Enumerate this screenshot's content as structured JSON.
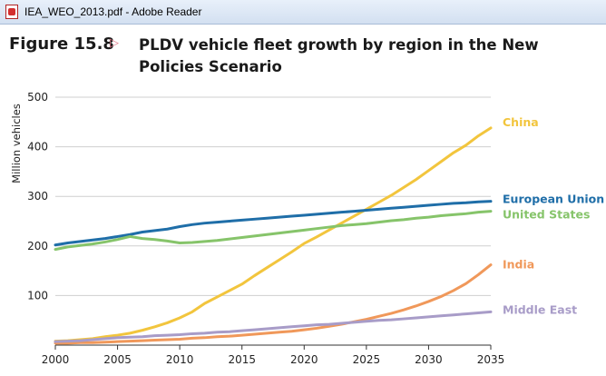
{
  "window": {
    "title": "IEA_WEO_2013.pdf - Adobe Reader"
  },
  "figure": {
    "number": "Figure 15.8",
    "marker": "▷",
    "title": "PLDV vehicle fleet growth by region in the New Policies Scenario"
  },
  "chart_data": {
    "type": "line",
    "title": "",
    "ylabel": "Million vehicles",
    "xlabel": "",
    "xlim": [
      2000,
      2035
    ],
    "ylim": [
      0,
      500
    ],
    "x_ticks": [
      2000,
      2005,
      2010,
      2015,
      2020,
      2025,
      2030,
      2035
    ],
    "y_ticks": [
      100,
      200,
      300,
      400,
      500
    ],
    "y_tick_labels": [
      "100",
      "200",
      "300",
      "400",
      "500"
    ],
    "x_tick_labels": [
      "2000",
      "2005",
      "2010",
      "2015",
      "2020",
      "2025",
      "2030",
      "2035"
    ],
    "grid": "horizontal",
    "legend": "inline at line ends",
    "x": [
      2000,
      2001,
      2002,
      2003,
      2004,
      2005,
      2006,
      2007,
      2008,
      2009,
      2010,
      2011,
      2012,
      2013,
      2014,
      2015,
      2016,
      2017,
      2018,
      2019,
      2020,
      2021,
      2022,
      2023,
      2024,
      2025,
      2026,
      2027,
      2028,
      2029,
      2030,
      2031,
      2032,
      2033,
      2034,
      2035
    ],
    "series": [
      {
        "name": "China",
        "color": "#f2c53d",
        "values": [
          8,
          9,
          11,
          13,
          17,
          20,
          24,
          30,
          37,
          45,
          55,
          67,
          84,
          97,
          110,
          123,
          140,
          156,
          172,
          188,
          205,
          218,
          232,
          246,
          260,
          274,
          288,
          302,
          318,
          334,
          352,
          370,
          388,
          403,
          422,
          438
        ]
      },
      {
        "name": "European Union",
        "color": "#1f6ea8",
        "values": [
          202,
          206,
          209,
          212,
          215,
          219,
          223,
          228,
          231,
          234,
          239,
          243,
          246,
          248,
          250,
          252,
          254,
          256,
          258,
          260,
          262,
          264,
          266,
          268,
          270,
          272,
          274,
          276,
          278,
          280,
          282,
          284,
          286,
          287,
          289,
          290
        ]
      },
      {
        "name": "United States",
        "color": "#86c46a",
        "values": [
          193,
          198,
          201,
          204,
          208,
          213,
          219,
          215,
          213,
          210,
          206,
          207,
          209,
          211,
          214,
          217,
          220,
          223,
          226,
          229,
          232,
          235,
          238,
          241,
          243,
          245,
          248,
          251,
          253,
          256,
          258,
          261,
          263,
          265,
          268,
          270
        ]
      },
      {
        "name": "India",
        "color": "#f0985a",
        "values": [
          4,
          4,
          5,
          5,
          6,
          7,
          8,
          9,
          10,
          11,
          12,
          14,
          15,
          17,
          18,
          20,
          22,
          24,
          26,
          28,
          31,
          34,
          38,
          42,
          47,
          52,
          58,
          64,
          71,
          79,
          88,
          98,
          110,
          124,
          142,
          162
        ]
      },
      {
        "name": "Middle East",
        "color": "#a89cc8",
        "values": [
          7,
          8,
          9,
          11,
          13,
          15,
          16,
          17,
          19,
          20,
          21,
          23,
          24,
          26,
          27,
          29,
          31,
          33,
          35,
          37,
          39,
          41,
          42,
          44,
          46,
          48,
          50,
          51,
          53,
          55,
          57,
          59,
          61,
          63,
          65,
          67
        ]
      }
    ]
  }
}
